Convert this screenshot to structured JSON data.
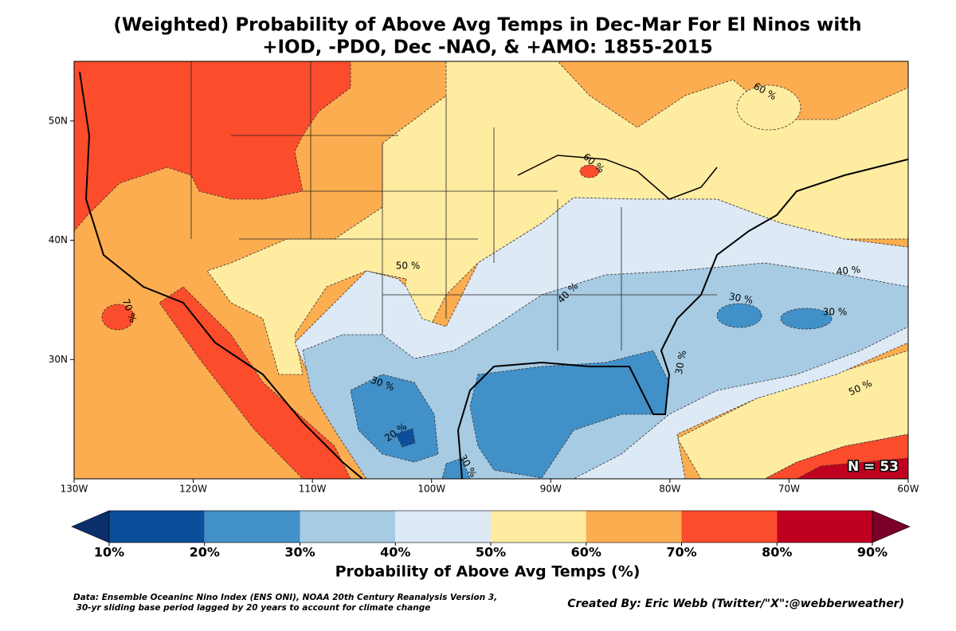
{
  "chart_data": {
    "type": "contour-map",
    "title": "(Weighted) Probability of Above Avg Temps in Dec-Mar For El Ninos with",
    "subtitle": "+IOD, -PDO, Dec -NAO, & +AMO: 1855-2015",
    "xlim": [
      -130,
      -60
    ],
    "ylim": [
      20,
      55
    ],
    "xticks": [
      {
        "value": -130,
        "label": "130W"
      },
      {
        "value": -120,
        "label": "120W"
      },
      {
        "value": -110,
        "label": "110W"
      },
      {
        "value": -100,
        "label": "100W"
      },
      {
        "value": -90,
        "label": "90W"
      },
      {
        "value": -80,
        "label": "80W"
      },
      {
        "value": -70,
        "label": "70W"
      },
      {
        "value": -60,
        "label": "60W"
      }
    ],
    "yticks": [
      {
        "value": 30,
        "label": "30N"
      },
      {
        "value": 40,
        "label": "40N"
      },
      {
        "value": 50,
        "label": "50N"
      }
    ],
    "contour_labels": [
      "50 %",
      "40 %",
      "60 %",
      "30 %",
      "40 %",
      "30 %",
      "30 %",
      "50 %",
      "30 %",
      "20 %",
      "30 %",
      "70 %",
      "60 %"
    ],
    "annotation": "N = 53",
    "colorbar": {
      "label": "Probability of Above Avg Temps (%)",
      "lim": [
        10,
        90
      ],
      "ticks": [
        {
          "value": 10,
          "label": "10%"
        },
        {
          "value": 20,
          "label": "20%"
        },
        {
          "value": 30,
          "label": "30%"
        },
        {
          "value": 40,
          "label": "40%"
        },
        {
          "value": 50,
          "label": "50%"
        },
        {
          "value": 60,
          "label": "60%"
        },
        {
          "value": 70,
          "label": "70%"
        },
        {
          "value": 80,
          "label": "80%"
        },
        {
          "value": 90,
          "label": "90%"
        }
      ],
      "colors": [
        "#0a2f6b",
        "#0b4f9a",
        "#4190c8",
        "#a6cbe3",
        "#dde9f5",
        "#feeca0",
        "#fcad4f",
        "#fb4c2b",
        "#c00020",
        "#7a0027"
      ]
    },
    "source_note": [
      "Data: Ensemble Oceaninc Nino Index (ENS ONI), NOAA 20th Century Reanalysis Version 3,",
      " 30-yr sliding base period lagged by 20 years to account for climate change"
    ],
    "credit": "Created By: Eric Webb (Twitter/\"X\":@webberweather)"
  }
}
